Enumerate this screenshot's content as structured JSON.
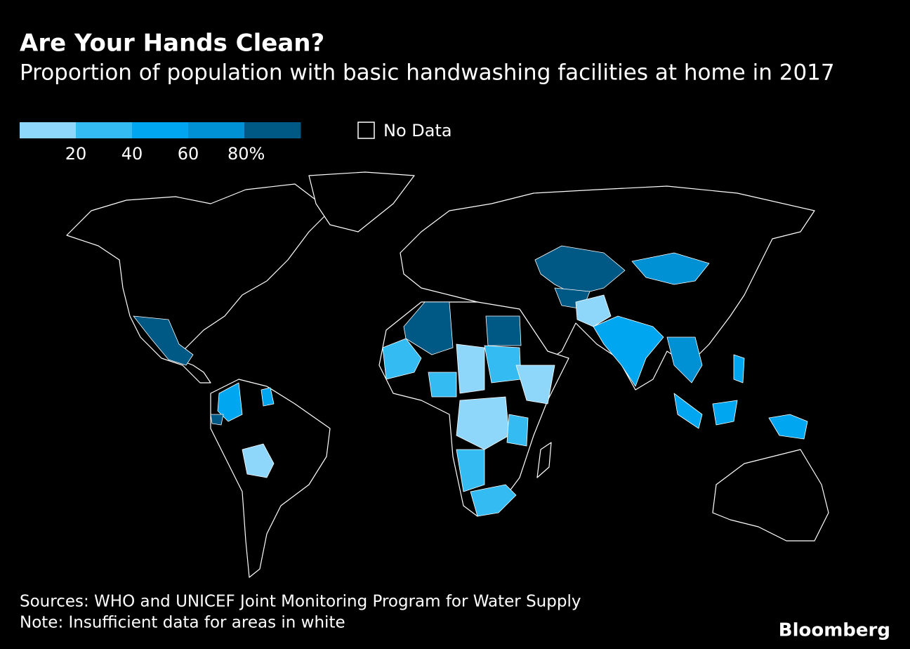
{
  "header": {
    "title": "Are Your Hands Clean?",
    "subtitle": "Proportion of population with basic handwashing facilities at home in 2017"
  },
  "legend": {
    "colors": [
      "#8fd6fb",
      "#33bbf2",
      "#00a7f0",
      "#0090d4",
      "#005884"
    ],
    "range": [
      0,
      100
    ],
    "ticks": [
      20,
      40,
      60,
      {
        "value": 80,
        "label": "80%"
      }
    ],
    "no_data": "No Data"
  },
  "footer": {
    "source": "Sources: WHO and UNICEF Joint Monitoring Program for Water Supply",
    "note": "Note: Insufficient data for areas in white",
    "brand": "Bloomberg"
  }
}
